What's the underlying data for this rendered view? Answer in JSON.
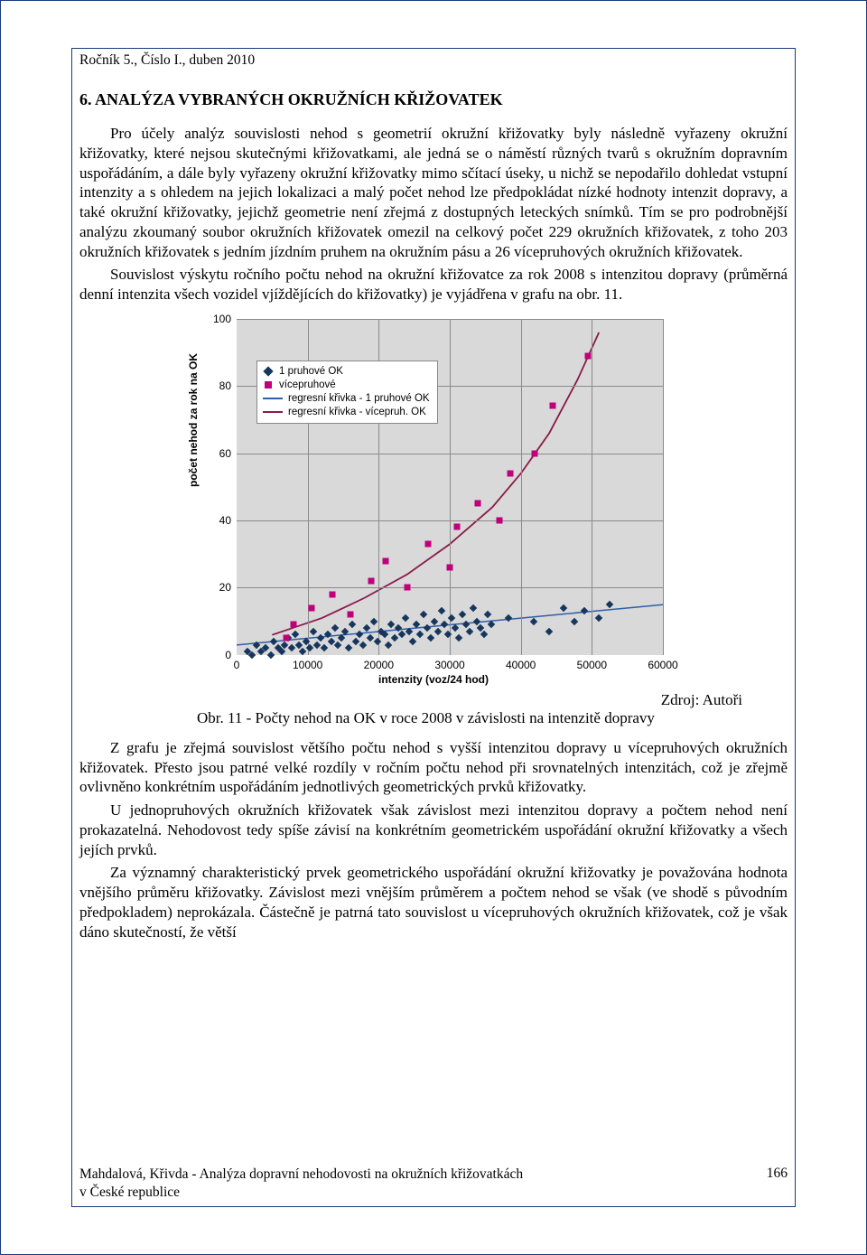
{
  "header": "Ročník 5., Číslo I., duben 2010",
  "section_title": "6. ANALÝZA VYBRANÝCH OKRUŽNÍCH KŘIŽOVATEK",
  "para1": "Pro účely analýz souvislosti nehod s geometrií okružní křižovatky byly následně vyřazeny okružní křižovatky, které nejsou skutečnými křižovatkami, ale jedná se o náměstí různých tvarů s okružním dopravním uspořádáním, a dále byly vyřazeny okružní křižovatky mimo sčítací úseky, u nichž se nepodařilo dohledat vstupní intenzity a s ohledem na jejich lokalizaci a malý počet nehod lze předpokládat nízké hodnoty intenzit dopravy, a také okružní křižovatky, jejichž geometrie není zřejmá z dostupných leteckých snímků. Tím se pro podrobnější analýzu zkoumaný soubor okružních křižovatek omezil na celkový počet 229 okružních křižovatek, z toho 203 okružních křižovatek s jedním jízdním pruhem na okružním pásu a 26 vícepruhových okružních křižovatek.",
  "para2": "Souvislost výskytu ročního počtu nehod na okružní křižovatce za rok 2008 s intenzitou dopravy (průměrná denní intenzita všech vozidel vjíždějících do křižovatky) je vyjádřena v grafu na obr. 11.",
  "chart": {
    "xlabel": "intenzity (voz/24 hod)",
    "ylabel": "počet nehod za rok na OK",
    "xlim": [
      0,
      60000
    ],
    "ylim": [
      0,
      100
    ],
    "xtick_step": 10000,
    "ytick_step": 20,
    "xtick_labels": [
      "0",
      "10000",
      "20000",
      "30000",
      "40000",
      "50000",
      "60000"
    ],
    "ytick_labels": [
      "0",
      "20",
      "40",
      "60",
      "80",
      "100"
    ],
    "plot_bg": "#d9d9d9",
    "grid_color": "#8a8a8a",
    "axis_color": "#7a7a7a",
    "legend": [
      {
        "type": "diamond",
        "color": "#17365d",
        "label": "1 pruhové OK"
      },
      {
        "type": "square",
        "color": "#c0007a",
        "label": "vícepruhové"
      },
      {
        "type": "line",
        "color": "#2f5ea8",
        "label": "regresní křivka - 1 pruhové OK"
      },
      {
        "type": "line",
        "color": "#8b1a4a",
        "label": "regresní křivka - vícepruh. OK"
      }
    ],
    "series1": {
      "marker": "diamond",
      "color": "#17365d",
      "points": [
        [
          1500,
          1
        ],
        [
          2200,
          0
        ],
        [
          2800,
          3
        ],
        [
          3400,
          1
        ],
        [
          4100,
          2
        ],
        [
          4800,
          0
        ],
        [
          5200,
          4
        ],
        [
          5800,
          2
        ],
        [
          6300,
          1
        ],
        [
          6800,
          3
        ],
        [
          7200,
          5
        ],
        [
          7800,
          2
        ],
        [
          8300,
          6
        ],
        [
          8800,
          3
        ],
        [
          9300,
          1
        ],
        [
          9800,
          4
        ],
        [
          10300,
          2
        ],
        [
          10800,
          7
        ],
        [
          11300,
          3
        ],
        [
          11800,
          5
        ],
        [
          12300,
          2
        ],
        [
          12800,
          6
        ],
        [
          13300,
          4
        ],
        [
          13800,
          8
        ],
        [
          14300,
          3
        ],
        [
          14800,
          5
        ],
        [
          15300,
          7
        ],
        [
          15800,
          2
        ],
        [
          16300,
          9
        ],
        [
          16800,
          4
        ],
        [
          17300,
          6
        ],
        [
          17800,
          3
        ],
        [
          18300,
          8
        ],
        [
          18800,
          5
        ],
        [
          19300,
          10
        ],
        [
          19800,
          4
        ],
        [
          20300,
          7
        ],
        [
          20800,
          6
        ],
        [
          21300,
          3
        ],
        [
          21800,
          9
        ],
        [
          22300,
          5
        ],
        [
          22800,
          8
        ],
        [
          23300,
          6
        ],
        [
          23800,
          11
        ],
        [
          24300,
          7
        ],
        [
          24800,
          4
        ],
        [
          25300,
          9
        ],
        [
          25800,
          6
        ],
        [
          26300,
          12
        ],
        [
          26800,
          8
        ],
        [
          27300,
          5
        ],
        [
          27800,
          10
        ],
        [
          28300,
          7
        ],
        [
          28800,
          13
        ],
        [
          29300,
          9
        ],
        [
          29800,
          6
        ],
        [
          30300,
          11
        ],
        [
          30800,
          8
        ],
        [
          31300,
          5
        ],
        [
          31800,
          12
        ],
        [
          32300,
          9
        ],
        [
          32800,
          7
        ],
        [
          33300,
          14
        ],
        [
          33800,
          10
        ],
        [
          34300,
          8
        ],
        [
          34800,
          6
        ],
        [
          35300,
          12
        ],
        [
          35800,
          9
        ],
        [
          38300,
          11
        ],
        [
          41800,
          10
        ],
        [
          44000,
          7
        ],
        [
          46000,
          14
        ],
        [
          47500,
          10
        ],
        [
          49000,
          13
        ],
        [
          51000,
          11
        ],
        [
          52500,
          15
        ]
      ]
    },
    "series2": {
      "marker": "square",
      "color": "#c0007a",
      "points": [
        [
          8000,
          9
        ],
        [
          7000,
          5
        ],
        [
          10500,
          14
        ],
        [
          13500,
          18
        ],
        [
          16000,
          12
        ],
        [
          19000,
          22
        ],
        [
          21000,
          28
        ],
        [
          24000,
          20
        ],
        [
          27000,
          33
        ],
        [
          30000,
          26
        ],
        [
          31000,
          38
        ],
        [
          34000,
          45
        ],
        [
          37000,
          40
        ],
        [
          38500,
          54
        ],
        [
          42000,
          60
        ],
        [
          44500,
          74
        ],
        [
          49500,
          89
        ]
      ]
    },
    "curve1": {
      "color": "#2f5ea8",
      "width": 1.5,
      "pts": [
        [
          0,
          3
        ],
        [
          10000,
          5
        ],
        [
          20000,
          7
        ],
        [
          30000,
          9
        ],
        [
          40000,
          11
        ],
        [
          50000,
          13
        ],
        [
          60000,
          15
        ]
      ]
    },
    "curve2": {
      "color": "#8b1a4a",
      "width": 1.8,
      "pts": [
        [
          5000,
          6
        ],
        [
          12000,
          11
        ],
        [
          18000,
          17
        ],
        [
          24000,
          24
        ],
        [
          30000,
          33
        ],
        [
          36000,
          44
        ],
        [
          40000,
          54
        ],
        [
          44000,
          66
        ],
        [
          48000,
          82
        ],
        [
          51000,
          96
        ]
      ]
    }
  },
  "fig_source": "Zdroj: Autoři",
  "fig_caption": "Obr. 11 - Počty nehod na OK v roce 2008 v závislosti na intenzitě dopravy",
  "para3": "Z grafu je zřejmá souvislost většího počtu nehod s vyšší intenzitou dopravy u vícepruhových okružních křižovatek. Přesto jsou patrné velké rozdíly v ročním počtu nehod při srovnatelných intenzitách, což je zřejmě ovlivněno konkrétním uspořádáním jednotlivých geometrických prvků křižovatky.",
  "para4": "U jednopruhových okružních křižovatek však závislost mezi intenzitou dopravy a počtem nehod není prokazatelná. Nehodovost tedy spíše závisí na konkrétním geometrickém uspořádání okružní křižovatky a všech jejích prvků.",
  "para5": "Za významný charakteristický prvek geometrického uspořádání okružní křižovatky je považována hodnota vnějšího průměru křižovatky. Závislost mezi vnějším průměrem a počtem nehod se však (ve shodě s původním předpokladem) neprokázala. Částečně je patrná tato souvislost u vícepruhových okružních křižovatek, což je však dáno skutečností, že větší",
  "footer_left_1": "Mahdalová, Křivda - Analýza dopravní nehodovosti na okružních křižovatkách",
  "footer_left_2": "v České republice",
  "page_num": "166"
}
